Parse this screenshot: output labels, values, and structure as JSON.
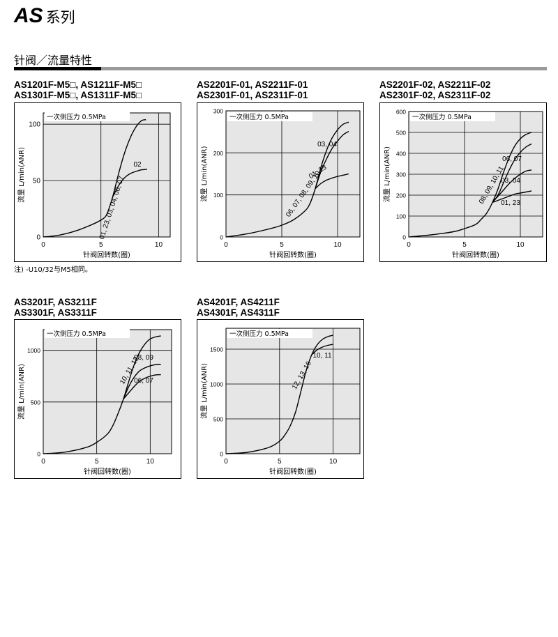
{
  "header": {
    "series_code": "AS",
    "series_suffix": "系列",
    "section_title": "针阀／流量特性"
  },
  "note": "注) -U10/32与M5相同。",
  "colors": {
    "plot_bg": "#e6e6e6",
    "curve": "#000000",
    "section_bar": "#9a9a9a"
  },
  "chart_data": [
    {
      "type": "line",
      "models": [
        "AS1201F-M5□, AS1211F-M5□",
        "AS1301F-M5□, AS1311F-M5□"
      ],
      "annotation": "一次侧压力 0.5MPa",
      "xlabel": "针阀回转数(圈)",
      "ylabel": "流量 L/min(ANR)",
      "xlim": [
        0,
        11
      ],
      "ylim": [
        0,
        110
      ],
      "xticks": [
        0,
        5,
        10
      ],
      "yticks": [
        0,
        50,
        100
      ],
      "grid": true,
      "series": [
        {
          "name": "01, 23, 03, 04, 06, 07",
          "x": [
            0,
            1,
            2,
            3,
            4,
            5,
            5.5,
            6,
            6.5,
            7,
            7.5,
            8,
            8.5,
            8.9
          ],
          "y": [
            0,
            1,
            3,
            6,
            10,
            15,
            20,
            35,
            55,
            73,
            87,
            97,
            103,
            104
          ]
        },
        {
          "name": "02",
          "x": [
            6,
            6.5,
            7,
            7.5,
            8,
            8.5,
            9
          ],
          "y": [
            35,
            45,
            52,
            56,
            58,
            59.5,
            60
          ]
        }
      ],
      "labels": [
        "01, 23, 03, 04, 06, 07",
        "02"
      ]
    },
    {
      "type": "line",
      "models": [
        "AS2201F-01, AS2211F-01",
        "AS2301F-01, AS2311F-01"
      ],
      "annotation": "一次侧压力 0.5MPa",
      "xlabel": "针阀回转数(圈)",
      "ylabel": "流量 L/min(ANR)",
      "xlim": [
        0,
        12
      ],
      "ylim": [
        0,
        300
      ],
      "xticks": [
        0,
        5,
        10
      ],
      "yticks": [
        0,
        100,
        200,
        300
      ],
      "grid": true,
      "series": [
        {
          "name": "06, 07, 08, 09, 10",
          "x": [
            0,
            2,
            4,
            5,
            6,
            7,
            7.5,
            8,
            8.5,
            9,
            9.5,
            10,
            10.5,
            11
          ],
          "y": [
            0,
            8,
            20,
            28,
            40,
            60,
            78,
            115,
            165,
            205,
            235,
            255,
            268,
            273
          ]
        },
        {
          "name": "03, 04",
          "x": [
            8,
            8.5,
            9,
            9.5,
            10,
            10.5,
            11
          ],
          "y": [
            115,
            155,
            185,
            210,
            228,
            243,
            251
          ]
        },
        {
          "name": "01, 23",
          "x": [
            8,
            8.5,
            9,
            9.5,
            10,
            10.5,
            11
          ],
          "y": [
            115,
            127,
            135,
            140,
            144,
            147,
            150
          ]
        }
      ],
      "labels": [
        "06, 07, 08, 09, 10",
        "03, 04",
        "01, 23"
      ]
    },
    {
      "type": "line",
      "models": [
        "AS2201F-02, AS2211F-02",
        "AS2301F-02, AS2311F-02"
      ],
      "annotation": "一次侧压力 0.5MPa",
      "xlabel": "针阀回转数(圈)",
      "ylabel": "流量 L/min(ANR)",
      "xlim": [
        0,
        12
      ],
      "ylim": [
        0,
        600
      ],
      "xticks": [
        0,
        5,
        10
      ],
      "yticks": [
        0,
        100,
        200,
        300,
        400,
        500,
        600
      ],
      "grid": true,
      "series": [
        {
          "name": "08, 09, 10, 11",
          "x": [
            0,
            2,
            4,
            5,
            6,
            6.5,
            7,
            7.5,
            8,
            8.5,
            9,
            9.5,
            10,
            10.5,
            11
          ],
          "y": [
            0,
            10,
            25,
            40,
            60,
            85,
            115,
            165,
            230,
            310,
            380,
            435,
            470,
            490,
            500
          ]
        },
        {
          "name": "06, 07",
          "x": [
            7.5,
            8,
            8.5,
            9,
            9.5,
            10,
            10.5,
            11
          ],
          "y": [
            165,
            200,
            260,
            320,
            370,
            405,
            430,
            445
          ]
        },
        {
          "name": "03, 04",
          "x": [
            7.5,
            8,
            8.5,
            9,
            9.5,
            10,
            10.5,
            11
          ],
          "y": [
            165,
            195,
            225,
            255,
            280,
            300,
            315,
            320
          ]
        },
        {
          "name": "01, 23",
          "x": [
            7.5,
            8,
            8.5,
            9,
            9.5,
            10,
            10.5,
            11
          ],
          "y": [
            165,
            175,
            185,
            195,
            205,
            210,
            215,
            220
          ]
        }
      ],
      "labels": [
        "08, 09, 10, 11",
        "06, 07",
        "03, 04",
        "01, 23"
      ]
    },
    {
      "type": "line",
      "models": [
        "AS3201F, AS3211F",
        "AS3301F, AS3311F"
      ],
      "annotation": "一次侧压力 0.5MPa",
      "xlabel": "针阀回转数(圈)",
      "ylabel": "流量 L/min(ANR)",
      "xlim": [
        0,
        12
      ],
      "ylim": [
        0,
        1200
      ],
      "xticks": [
        0,
        5,
        10
      ],
      "yticks": [
        0,
        500,
        1000
      ],
      "grid": true,
      "series": [
        {
          "name": "10, 11, 12",
          "x": [
            0,
            2,
            4,
            5,
            6,
            6.5,
            7,
            7.5,
            8,
            8.5,
            9,
            9.5,
            10,
            10.5,
            11
          ],
          "y": [
            0,
            15,
            60,
            110,
            190,
            270,
            390,
            530,
            700,
            860,
            980,
            1060,
            1110,
            1130,
            1140
          ]
        },
        {
          "name": "08, 09",
          "x": [
            7.5,
            8,
            8.5,
            9,
            9.5,
            10,
            10.5,
            11
          ],
          "y": [
            530,
            650,
            740,
            800,
            830,
            850,
            862,
            865
          ]
        },
        {
          "name": "06, 07",
          "x": [
            7.5,
            8,
            8.5,
            9,
            9.5,
            10,
            10.5,
            11
          ],
          "y": [
            530,
            590,
            650,
            700,
            730,
            750,
            762,
            765
          ]
        }
      ],
      "labels": [
        "10, 11, 12",
        "08, 09",
        "06, 07"
      ]
    },
    {
      "type": "line",
      "models": [
        "AS4201F, AS4211F",
        "AS4301F, AS4311F"
      ],
      "annotation": "一次侧压力 0.5MPa",
      "xlabel": "针阀回转数(圈)",
      "ylabel": "流量 L/min(ANR)",
      "xlim": [
        0,
        12.5
      ],
      "ylim": [
        0,
        1800
      ],
      "xticks": [
        0,
        5,
        10
      ],
      "yticks": [
        0,
        500,
        1000,
        1500
      ],
      "grid": true,
      "series": [
        {
          "name": "12, 13, 16",
          "x": [
            0,
            2,
            4,
            5,
            5.5,
            6,
            6.5,
            7,
            7.5,
            8,
            8.5,
            9,
            9.5,
            10
          ],
          "y": [
            0,
            20,
            90,
            180,
            270,
            400,
            600,
            900,
            1200,
            1420,
            1560,
            1640,
            1680,
            1700
          ]
        },
        {
          "name": "10, 11",
          "x": [
            8,
            8.5,
            9,
            9.5,
            10
          ],
          "y": [
            1420,
            1490,
            1530,
            1555,
            1570
          ]
        }
      ],
      "labels": [
        "12, 13, 16",
        "10, 11"
      ]
    }
  ]
}
